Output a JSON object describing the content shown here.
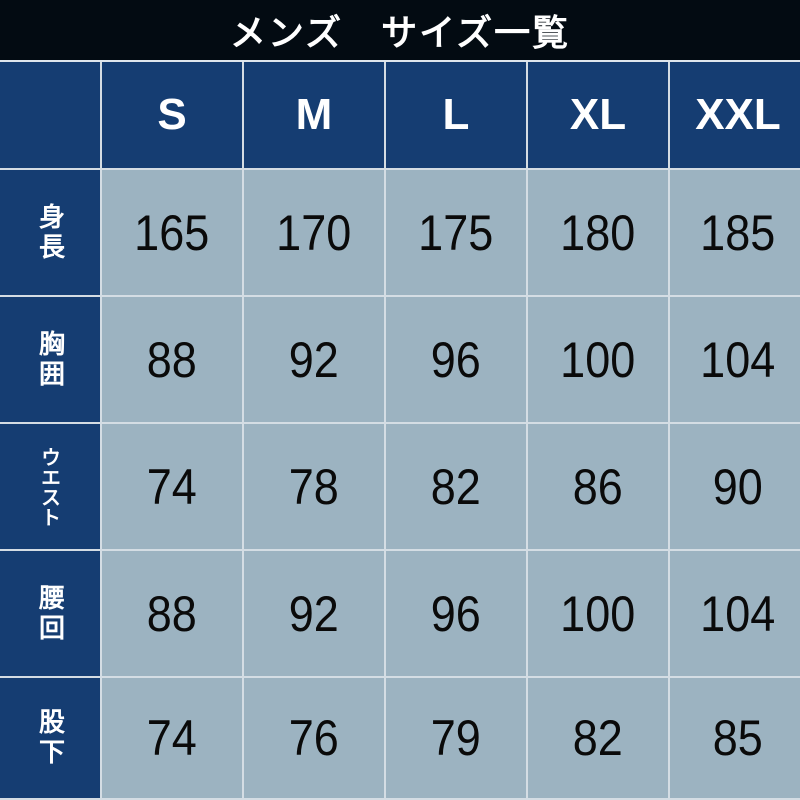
{
  "title": "メンズ　サイズ一覧",
  "colors": {
    "title_bg": "#030b12",
    "header_bg": "#153d72",
    "cell_bg": "#9cb3c1",
    "grid_line": "#d4dde4"
  },
  "sizes": [
    "S",
    "M",
    "L",
    "XL",
    "XXL"
  ],
  "rows": [
    {
      "label": "身長",
      "values": [
        "165",
        "170",
        "175",
        "180",
        "185"
      ]
    },
    {
      "label": "胸囲",
      "values": [
        "88",
        "92",
        "96",
        "100",
        "104"
      ]
    },
    {
      "label": "ウエスト",
      "values": [
        "74",
        "78",
        "82",
        "86",
        "90"
      ]
    },
    {
      "label": "腰回",
      "values": [
        "88",
        "92",
        "96",
        "100",
        "104"
      ]
    },
    {
      "label": "股下",
      "values": [
        "74",
        "76",
        "79",
        "82",
        "85"
      ]
    }
  ]
}
